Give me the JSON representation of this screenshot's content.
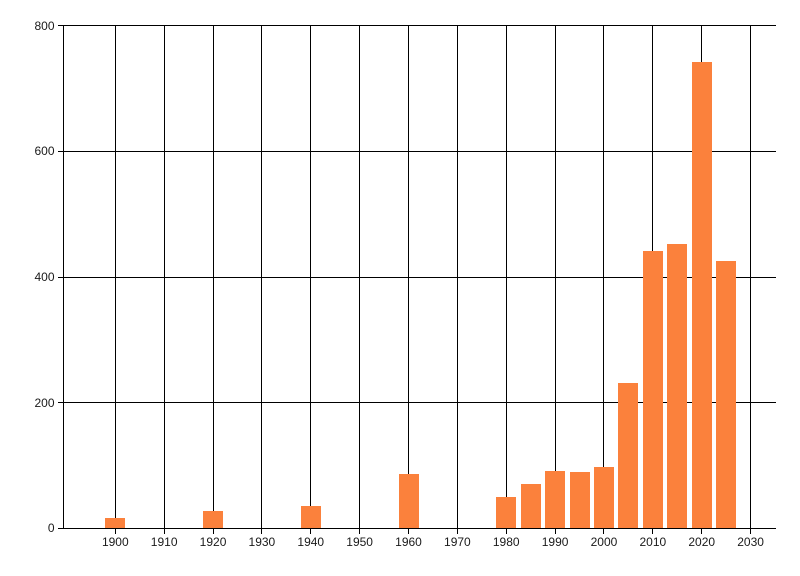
{
  "chart_data": {
    "type": "bar",
    "title": "",
    "xlabel": "",
    "ylabel": "",
    "x": [
      1900,
      1920,
      1940,
      1960,
      1980,
      1985,
      1990,
      1995,
      2000,
      2005,
      2010,
      2015,
      2020,
      2025
    ],
    "values": [
      16,
      28,
      36,
      87,
      50,
      70,
      92,
      90,
      97,
      232,
      442,
      453,
      742,
      425
    ],
    "x_ticks": [
      1900,
      1910,
      1920,
      1930,
      1940,
      1950,
      1960,
      1970,
      1980,
      1990,
      2000,
      2010,
      2020,
      2030
    ],
    "y_ticks": [
      0,
      200,
      400,
      600,
      800
    ],
    "xlim": [
      1889.4,
      2035.2
    ],
    "ylim": [
      0,
      800
    ],
    "grid": true,
    "legend_position": "none",
    "bar_color": "#fb813c",
    "background_color": "#ffffff",
    "grid_color": "#000000",
    "label_color": "#1a1a1a"
  }
}
